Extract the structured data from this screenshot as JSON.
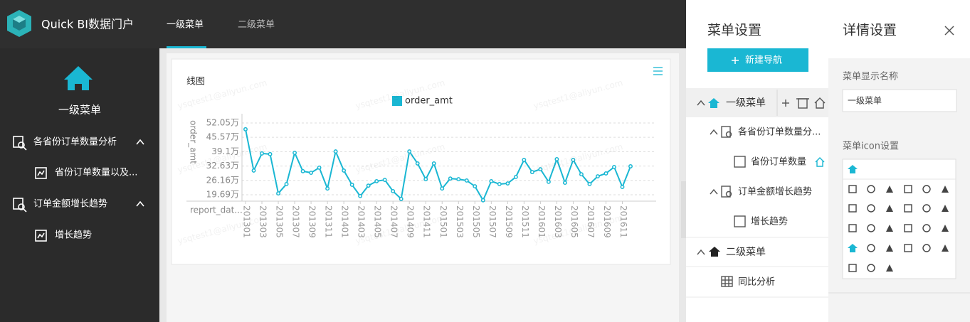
{
  "header": {
    "brand": "Quick BI数据门户",
    "tabs": [
      "一级菜单",
      "二级菜单"
    ]
  },
  "sidebar": {
    "home_label": "一级菜单",
    "items": [
      {
        "label": "各省份订单数量分析",
        "children": [
          "省份订单数量以及..."
        ]
      },
      {
        "label": "订单金额增长趋势",
        "children": [
          "增长趋势"
        ]
      }
    ]
  },
  "watermark": "ysqtest1@aliyun.com",
  "chart_data": {
    "type": "line",
    "title": "线图",
    "ylabel": "order_amt",
    "xlabel": "report_dat...",
    "categories": [
      "201301",
      null,
      "201303",
      null,
      "201305",
      null,
      "201307",
      null,
      "201309",
      null,
      "201311",
      null,
      "201401",
      null,
      "201403",
      null,
      "201405",
      null,
      "201407",
      null,
      "201409",
      null,
      "201411",
      null,
      "201501",
      null,
      "201503",
      null,
      "201505",
      null,
      "201507",
      null,
      "201509",
      null,
      "201511",
      null,
      "201601",
      null,
      "201603",
      null,
      "201605",
      null,
      "201607",
      null,
      "201609",
      null,
      "201611",
      null
    ],
    "series": [
      {
        "name": "order_amt",
        "color": "#1ab7d3",
        "values": [
          49.2,
          30.6,
          38.3,
          38.0,
          20.3,
          24.5,
          38.6,
          30.3,
          29.6,
          31.9,
          22.5,
          39.2,
          30.6,
          24.2,
          19.1,
          23.8,
          25.8,
          26.4,
          21.3,
          17.8,
          39.2,
          33.8,
          26.7,
          33.8,
          22.5,
          27.0,
          26.7,
          26.1,
          23.5,
          17.2,
          25.8,
          24.5,
          24.8,
          27.7,
          35.4,
          29.9,
          31.2,
          25.5,
          35.7,
          25.1,
          35.4,
          28.9,
          24.5,
          28.0,
          29.3,
          32.2,
          23.2,
          32.5
        ]
      }
    ],
    "ylim": [
      16.8,
      56.2
    ],
    "yticks": [
      {
        "value": 19.69,
        "label": "19.69万"
      },
      {
        "value": 26.16,
        "label": "26.16万"
      },
      {
        "value": 32.63,
        "label": "32.63万"
      },
      {
        "value": 39.1,
        "label": "39.1万"
      },
      {
        "value": 45.57,
        "label": "45.57万"
      },
      {
        "value": 52.05,
        "label": "52.05万"
      }
    ],
    "grid": true,
    "legend": "top"
  },
  "menu_settings": {
    "title": "菜单设置",
    "button": "新建导航",
    "tree": [
      {
        "label": "一级菜单",
        "children": [
          {
            "label": "各省份订单数量分...",
            "children": [
              "省份订单数量"
            ]
          },
          {
            "label": "订单金额增长趋势",
            "children": [
              "增长趋势"
            ]
          }
        ]
      },
      {
        "label": "二级菜单",
        "children": [
          "同比分析"
        ]
      }
    ]
  },
  "detail_settings": {
    "title": "详情设置",
    "name_label": "菜单显示名称",
    "name_value": "一级菜单",
    "icon_label": "菜单icon设置"
  }
}
